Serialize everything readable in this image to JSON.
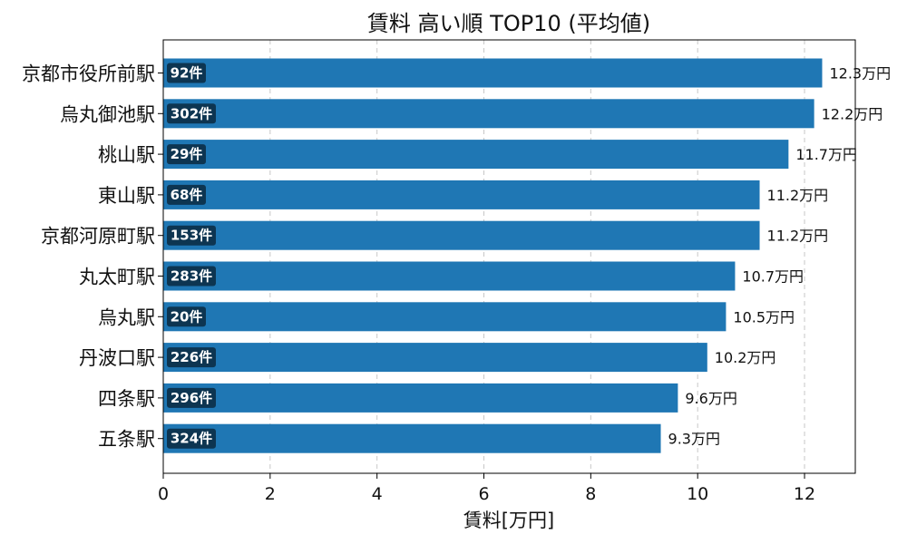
{
  "chart_data": {
    "type": "bar",
    "orientation": "horizontal",
    "title": "賃料 高い順 TOP10 (平均値)",
    "xlabel": "賃料[万円]",
    "ylabel": "",
    "xlim": [
      0,
      12.95
    ],
    "xticks": [
      0,
      2,
      4,
      6,
      8,
      10,
      12
    ],
    "grid": "x-dashed",
    "bar_color": "#1f77b4",
    "badge_color": "#0d3551",
    "categories": [
      "京都市役所前駅",
      "烏丸御池駅",
      "桃山駅",
      "東山駅",
      "京都河原町駅",
      "丸太町駅",
      "烏丸駅",
      "丹波口駅",
      "四条駅",
      "五条駅"
    ],
    "values": [
      12.33,
      12.18,
      11.7,
      11.16,
      11.16,
      10.7,
      10.53,
      10.18,
      9.63,
      9.31
    ],
    "value_labels": [
      "12.3万円",
      "12.2万円",
      "11.7万円",
      "11.2万円",
      "11.2万円",
      "10.7万円",
      "10.5万円",
      "10.2万円",
      "9.6万円",
      "9.3万円"
    ],
    "count_labels": [
      "92件",
      "302件",
      "29件",
      "68件",
      "153件",
      "283件",
      "20件",
      "226件",
      "296件",
      "324件"
    ]
  }
}
